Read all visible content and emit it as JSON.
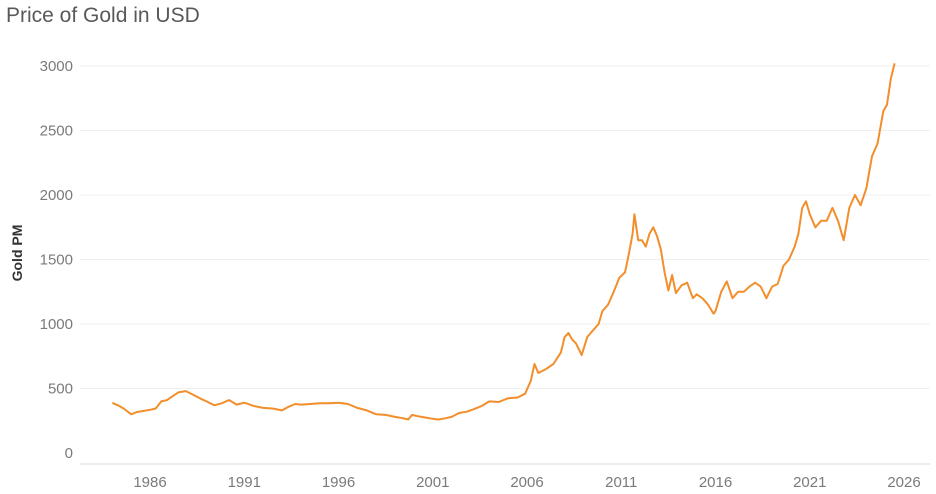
{
  "chart_data": {
    "type": "line",
    "title": "Price of Gold in USD",
    "xlabel": "",
    "ylabel": "Gold PM",
    "xlim": [
      1984.0,
      2025.9
    ],
    "ylim": [
      0,
      3100
    ],
    "x_ticks": [
      1986,
      1991,
      1996,
      2001,
      2006,
      2011,
      2016,
      2021,
      2026
    ],
    "y_ticks": [
      0,
      500,
      1000,
      1500,
      2000,
      2500,
      3000
    ],
    "grid": true,
    "legend": "none",
    "series": [
      {
        "color": "#f28e2b",
        "x": [
          1984.0,
          1984.3,
          1984.6,
          1985.0,
          1985.3,
          1985.6,
          1986.0,
          1986.3,
          1986.6,
          1986.9,
          1987.2,
          1987.5,
          1987.9,
          1988.3,
          1988.7,
          1989.0,
          1989.4,
          1989.8,
          1990.2,
          1990.6,
          1991.0,
          1991.5,
          1992.0,
          1992.5,
          1993.0,
          1993.3,
          1993.7,
          1994.0,
          1994.5,
          1995.0,
          1995.5,
          1996.0,
          1996.5,
          1997.0,
          1997.5,
          1998.0,
          1998.5,
          1999.0,
          1999.4,
          1999.7,
          1999.9,
          2000.2,
          2000.6,
          2001.0,
          2001.3,
          2001.7,
          2002.0,
          2002.4,
          2002.8,
          2003.2,
          2003.6,
          2004.0,
          2004.5,
          2005.0,
          2005.5,
          2005.9,
          2006.2,
          2006.4,
          2006.6,
          2007.0,
          2007.4,
          2007.8,
          2008.0,
          2008.2,
          2008.4,
          2008.6,
          2008.9,
          2009.2,
          2009.5,
          2009.8,
          2010.0,
          2010.3,
          2010.6,
          2010.9,
          2011.2,
          2011.4,
          2011.6,
          2011.7,
          2011.9,
          2012.1,
          2012.3,
          2012.5,
          2012.7,
          2012.9,
          2013.1,
          2013.3,
          2013.5,
          2013.7,
          2013.9,
          2014.2,
          2014.5,
          2014.8,
          2015.0,
          2015.3,
          2015.6,
          2015.9,
          2016.0,
          2016.3,
          2016.6,
          2016.9,
          2017.2,
          2017.5,
          2017.8,
          2018.1,
          2018.4,
          2018.7,
          2019.0,
          2019.3,
          2019.6,
          2019.9,
          2020.2,
          2020.4,
          2020.6,
          2020.8,
          2021.0,
          2021.3,
          2021.6,
          2021.9,
          2022.2,
          2022.5,
          2022.8,
          2023.1,
          2023.4,
          2023.7,
          2024.0,
          2024.3,
          2024.6,
          2024.9,
          2025.1,
          2025.3,
          2025.5
        ],
        "y": [
          388,
          370,
          345,
          300,
          318,
          325,
          335,
          345,
          400,
          410,
          440,
          470,
          480,
          450,
          420,
          400,
          370,
          385,
          410,
          375,
          390,
          365,
          350,
          345,
          330,
          355,
          380,
          375,
          380,
          385,
          385,
          390,
          380,
          350,
          330,
          300,
          295,
          280,
          270,
          260,
          295,
          285,
          275,
          265,
          260,
          270,
          280,
          310,
          320,
          340,
          365,
          400,
          395,
          425,
          430,
          460,
          560,
          690,
          620,
          650,
          690,
          780,
          900,
          930,
          880,
          850,
          760,
          900,
          950,
          1000,
          1100,
          1150,
          1250,
          1360,
          1400,
          1540,
          1700,
          1850,
          1650,
          1650,
          1600,
          1700,
          1750,
          1680,
          1580,
          1400,
          1260,
          1380,
          1240,
          1300,
          1320,
          1200,
          1230,
          1200,
          1150,
          1080,
          1100,
          1250,
          1330,
          1200,
          1250,
          1250,
          1290,
          1320,
          1290,
          1200,
          1290,
          1310,
          1450,
          1500,
          1600,
          1700,
          1900,
          1950,
          1850,
          1750,
          1800,
          1800,
          1900,
          1800,
          1650,
          1900,
          2000,
          1920,
          2050,
          2300,
          2400,
          2650,
          2700,
          2900,
          3020
        ]
      }
    ]
  }
}
